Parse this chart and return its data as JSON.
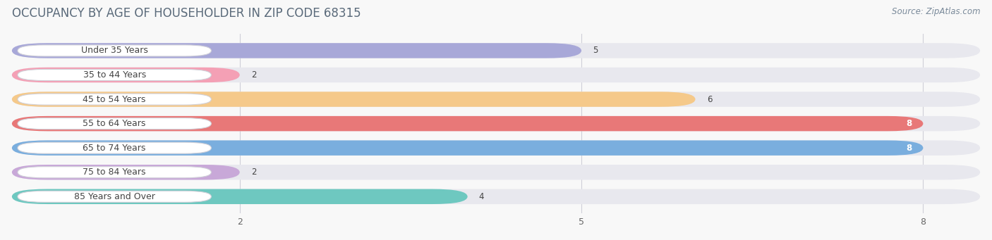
{
  "title": "OCCUPANCY BY AGE OF HOUSEHOLDER IN ZIP CODE 68315",
  "source": "Source: ZipAtlas.com",
  "categories": [
    "Under 35 Years",
    "35 to 44 Years",
    "45 to 54 Years",
    "55 to 64 Years",
    "65 to 74 Years",
    "75 to 84 Years",
    "85 Years and Over"
  ],
  "values": [
    5,
    2,
    6,
    8,
    8,
    2,
    4
  ],
  "bar_colors": [
    "#a8a8d8",
    "#f4a0b5",
    "#f5c98a",
    "#e87878",
    "#7aaede",
    "#c8a8d8",
    "#6ec8c0"
  ],
  "bar_bg_color": "#e8e8ee",
  "label_bg_color": "#ffffff",
  "xlim_max": 8.5,
  "xticks": [
    2,
    5,
    8
  ],
  "title_fontsize": 12,
  "source_fontsize": 8.5,
  "label_fontsize": 9,
  "value_fontsize": 8.5,
  "tick_fontsize": 9,
  "title_color": "#5a6a7a",
  "source_color": "#7a8a9a",
  "text_color": "#444444",
  "background_color": "#f8f8f8",
  "grid_color": "#d0d0d8"
}
